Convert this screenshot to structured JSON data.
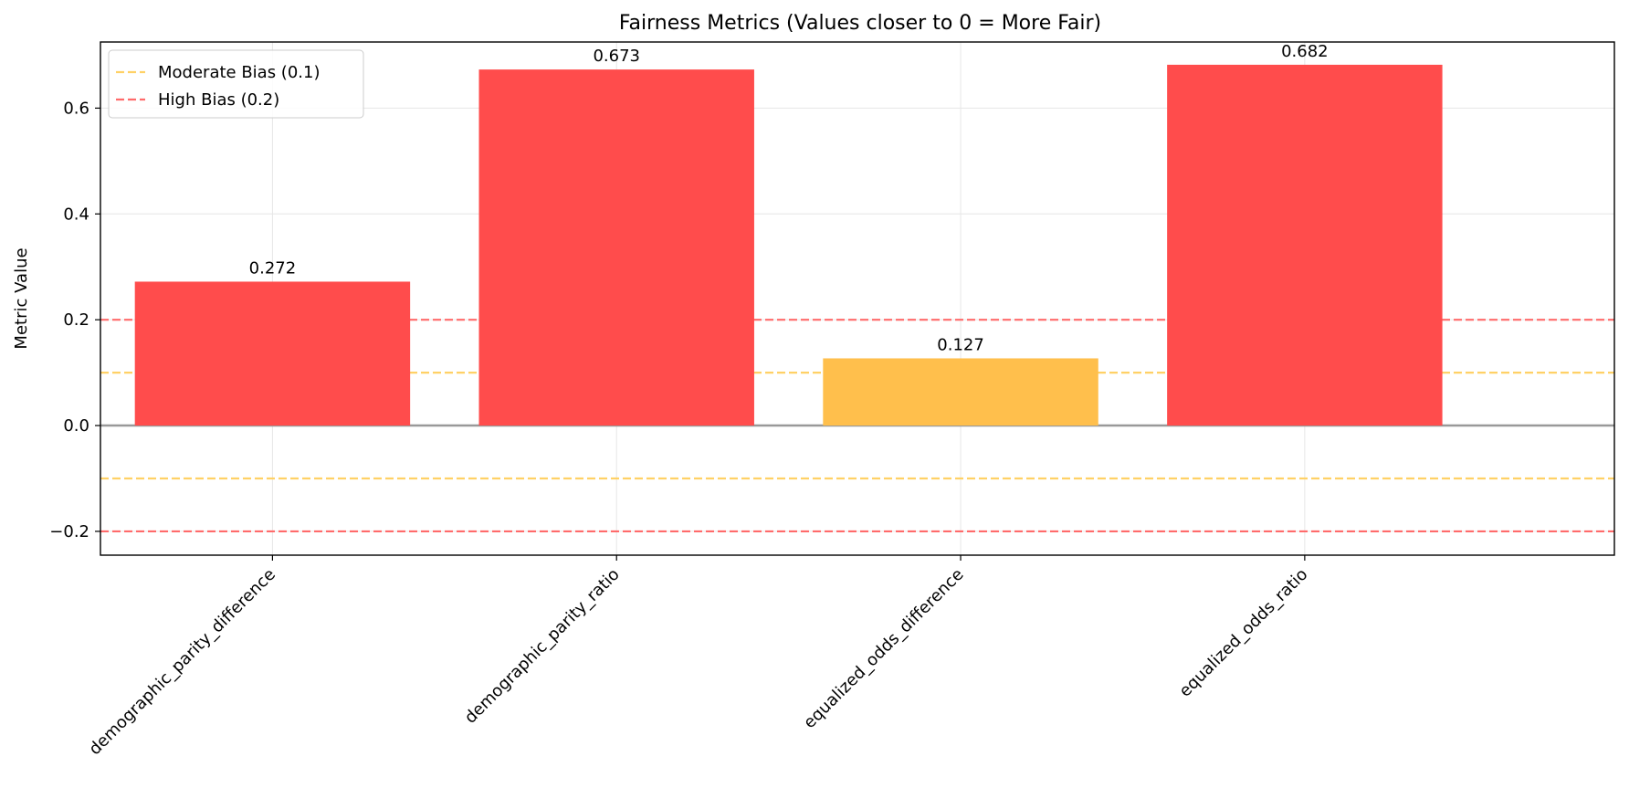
{
  "chart_data": {
    "type": "bar",
    "title": "Fairness Metrics (Values closer to 0 = More Fair)",
    "xlabel": "",
    "ylabel": "Metric Value",
    "categories": [
      "demographic_parity_difference",
      "demographic_parity_ratio",
      "equalized_odds_difference",
      "equalized_odds_ratio"
    ],
    "values": [
      0.272,
      0.673,
      0.127,
      0.682
    ],
    "data_labels": [
      "0.272",
      "0.673",
      "0.127",
      "0.682"
    ],
    "bar_colors": [
      "#ff4c4c",
      "#ff4c4c",
      "#ffbf4c",
      "#ff4c4c"
    ],
    "ylim": [
      -0.245,
      0.725
    ],
    "yticks": [
      -0.2,
      0.0,
      0.2,
      0.4,
      0.6
    ],
    "ytick_labels": [
      "−0.2",
      "0.0",
      "0.2",
      "0.4",
      "0.6"
    ],
    "grid": true,
    "zero_line_color": "#999999",
    "reference_lines": [
      {
        "name": "Moderate Bias (0.1)",
        "values": [
          0.1,
          -0.1
        ],
        "color": "#ffd166"
      },
      {
        "name": "High Bias (0.2)",
        "values": [
          0.2,
          -0.2
        ],
        "color": "#ff6b6b"
      }
    ],
    "legend": {
      "placement": "top-left",
      "entries": [
        "Moderate Bias (0.1)",
        "High Bias (0.2)"
      ]
    }
  }
}
